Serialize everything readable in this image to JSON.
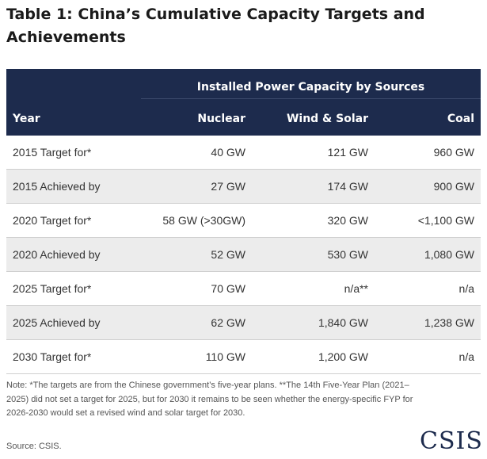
{
  "title": "Table 1: China’s Cumulative Capacity Targets and Achievements",
  "table": {
    "group_header": "Installed Power Capacity by Sources",
    "columns": [
      "Year",
      "Nuclear",
      "Wind & Solar",
      "Coal"
    ],
    "rows": [
      [
        "2015 Target for*",
        "40 GW",
        "121 GW",
        "960 GW"
      ],
      [
        "2015 Achieved by",
        "27 GW",
        "174 GW",
        "900 GW"
      ],
      [
        "2020 Target for*",
        "58 GW (>30GW)",
        "320 GW",
        "<1,100 GW"
      ],
      [
        "2020 Achieved by",
        "52 GW",
        "530 GW",
        "1,080 GW"
      ],
      [
        "2025 Target for*",
        "70 GW",
        "n/a**",
        "n/a"
      ],
      [
        "2025 Achieved by",
        "62 GW",
        "1,840 GW",
        "1,238 GW"
      ],
      [
        "2030 Target for*",
        "110 GW",
        "1,200 GW",
        "n/a"
      ]
    ]
  },
  "note": "Note: *The targets are from the Chinese government’s five-year plans. **The 14th Five-Year Plan (2021–2025) did not set a target for 2025, but for 2030 it remains to be seen whether the energy-specific FYP for 2026-2030 would set a revised wind and solar target for 2030.",
  "source": "Source: CSIS.",
  "logo": "CSIS",
  "colors": {
    "header_bg": "#1d2b4d",
    "stripe_bg": "#ececec",
    "text": "#333333"
  }
}
